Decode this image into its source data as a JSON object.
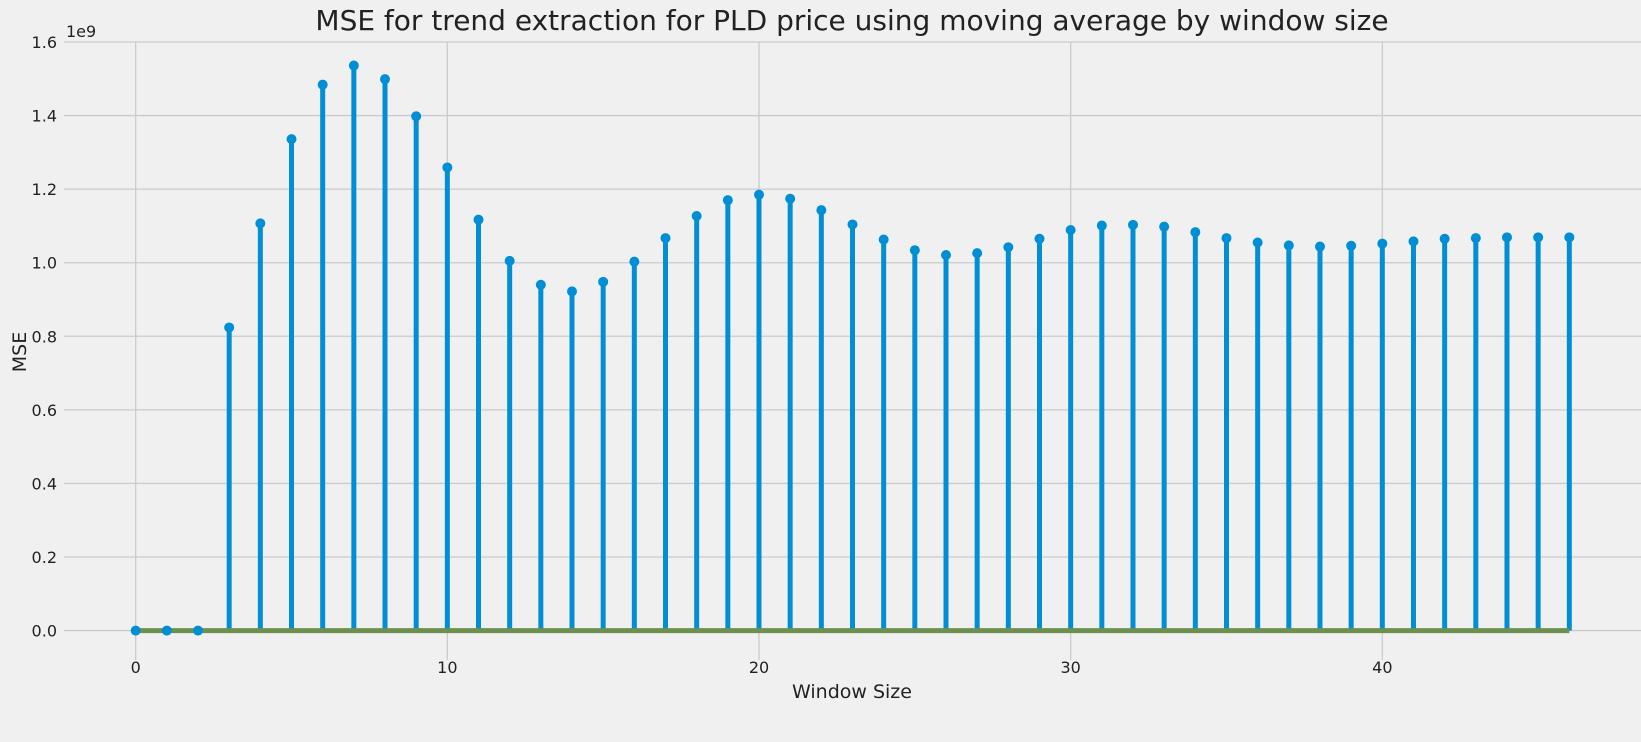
{
  "chart_data": {
    "type": "stem",
    "title": "MSE for trend extraction for PLD price using moving average by window size",
    "xlabel": "Window Size",
    "ylabel": "MSE",
    "y_offset_label": "1e9",
    "xlim": [
      -2.3,
      48.3
    ],
    "ylim": [
      -0.08,
      1.6
    ],
    "x_ticks": [
      0,
      10,
      20,
      30,
      40
    ],
    "x_tick_labels": [
      "0",
      "10",
      "20",
      "30",
      "40"
    ],
    "y_ticks": [
      0.0,
      0.2,
      0.4,
      0.6,
      0.8,
      1.0,
      1.2,
      1.4,
      1.6
    ],
    "y_tick_labels": [
      "0.0",
      "0.2",
      "0.4",
      "0.6",
      "0.8",
      "1.0",
      "1.2",
      "1.4",
      "1.6"
    ],
    "grid": true,
    "x": [
      0,
      1,
      2,
      3,
      4,
      5,
      6,
      7,
      8,
      9,
      10,
      11,
      12,
      13,
      14,
      15,
      16,
      17,
      18,
      19,
      20,
      21,
      22,
      23,
      24,
      25,
      26,
      27,
      28,
      29,
      30,
      31,
      32,
      33,
      34,
      35,
      36,
      37,
      38,
      39,
      40,
      41,
      42,
      43,
      44,
      45,
      46
    ],
    "values": [
      0.0,
      0.0,
      0.0,
      0.824,
      1.107,
      1.336,
      1.484,
      1.536,
      1.499,
      1.398,
      1.259,
      1.117,
      1.005,
      0.94,
      0.922,
      0.948,
      1.003,
      1.067,
      1.127,
      1.17,
      1.185,
      1.174,
      1.143,
      1.104,
      1.063,
      1.034,
      1.021,
      1.026,
      1.042,
      1.065,
      1.089,
      1.101,
      1.103,
      1.098,
      1.083,
      1.067,
      1.055,
      1.047,
      1.044,
      1.046,
      1.052,
      1.058,
      1.065,
      1.067,
      1.069,
      1.069,
      1.069
    ],
    "colors": {
      "stem": "#008fd5",
      "baseline": "#6d904f",
      "background": "#f0f0f0",
      "grid": "#cbcbcb"
    }
  }
}
